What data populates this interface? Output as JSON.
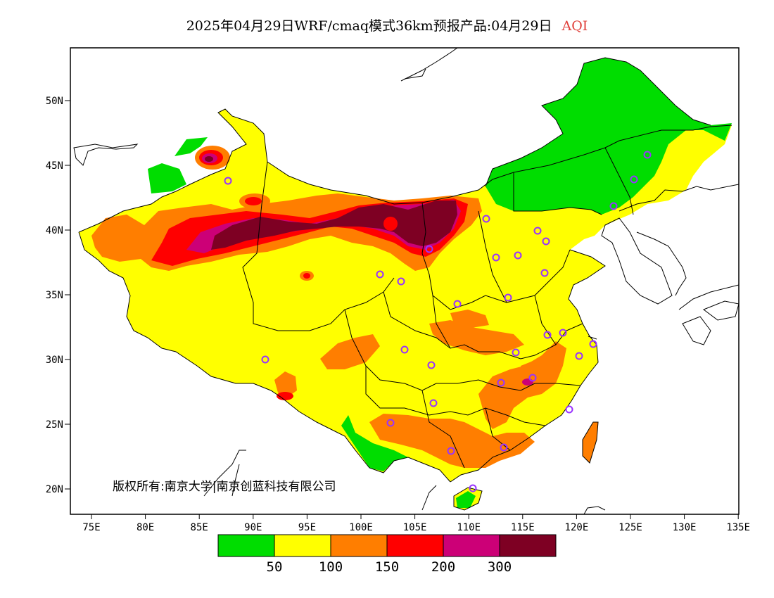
{
  "title": {
    "main": "2025年04月29日WRF/cmaq模式36km预报产品:04月29日",
    "variable": "AQI"
  },
  "copyright": "版权所有:南京大学|南京创蓝科技有限公司",
  "axes": {
    "y_ticks": [
      "50N",
      "45N",
      "40N",
      "35N",
      "30N",
      "25N",
      "20N"
    ],
    "x_ticks": [
      "75E",
      "80E",
      "85E",
      "90E",
      "95E",
      "100E",
      "105E",
      "110E",
      "115E",
      "120E",
      "125E",
      "130E",
      "135E"
    ]
  },
  "colorbar": {
    "colors": [
      "#00dd00",
      "#ffff00",
      "#ff7e00",
      "#ff0000",
      "#cc0077",
      "#7e0023"
    ],
    "labels": [
      "50",
      "100",
      "150",
      "200",
      "300"
    ]
  },
  "colors": {
    "good": "#00dd00",
    "moderate": "#ffff00",
    "light": "#ff7e00",
    "medium": "#ff0000",
    "heavy": "#cc0077",
    "severe": "#7e0023",
    "station": "#9933ff"
  }
}
